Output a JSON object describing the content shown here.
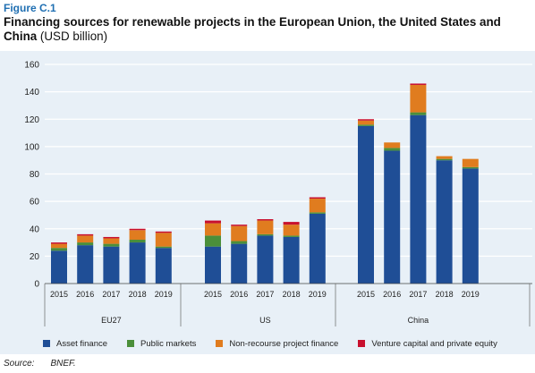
{
  "figure": {
    "label": "Figure C.1",
    "title_bold": "Financing sources for renewable projects in the European Union, the United States and China",
    "title_unit": " (USD billion)"
  },
  "source": {
    "label": "Source:",
    "value": "BNEF."
  },
  "colors": {
    "asset": "#1f4e96",
    "public": "#4b8f3a",
    "nonrecourse": "#e07c1f",
    "venture": "#c8102e",
    "panel": "#e8f0f7",
    "grid": "#ffffff"
  },
  "chart_data": {
    "type": "bar",
    "stacked": true,
    "ylim": [
      0,
      160
    ],
    "yticks": [
      0,
      20,
      40,
      60,
      80,
      100,
      120,
      140,
      160
    ],
    "grid": true,
    "legend_position": "bottom",
    "title": "",
    "xlabel": "",
    "ylabel": "",
    "groups": [
      {
        "name": "EU27",
        "categories": [
          "2015",
          "2016",
          "2017",
          "2018",
          "2019"
        ]
      },
      {
        "name": "US",
        "categories": [
          "2015",
          "2016",
          "2017",
          "2018",
          "2019"
        ]
      },
      {
        "name": "China",
        "categories": [
          "2015",
          "2016",
          "2017",
          "2018",
          "2019"
        ]
      }
    ],
    "series": [
      {
        "name": "Asset finance",
        "color_key": "asset",
        "values": [
          24,
          28,
          27,
          30,
          26,
          27,
          29,
          35,
          34,
          51,
          115,
          97,
          123,
          90,
          84
        ]
      },
      {
        "name": "Public markets",
        "color_key": "public",
        "values": [
          2,
          2,
          2,
          2,
          1,
          8,
          2,
          1,
          1,
          1,
          1,
          2,
          2,
          1,
          1
        ]
      },
      {
        "name": "Non-recourse project finance",
        "color_key": "nonrecourse",
        "values": [
          3,
          5,
          4,
          7,
          10,
          9,
          11,
          10,
          8,
          10,
          3,
          4,
          20,
          2,
          6
        ]
      },
      {
        "name": "Venture capital and private equity",
        "color_key": "venture",
        "values": [
          1,
          1,
          1,
          1,
          1,
          2,
          1,
          1,
          2,
          1,
          1,
          0,
          1,
          0,
          0
        ]
      }
    ]
  }
}
